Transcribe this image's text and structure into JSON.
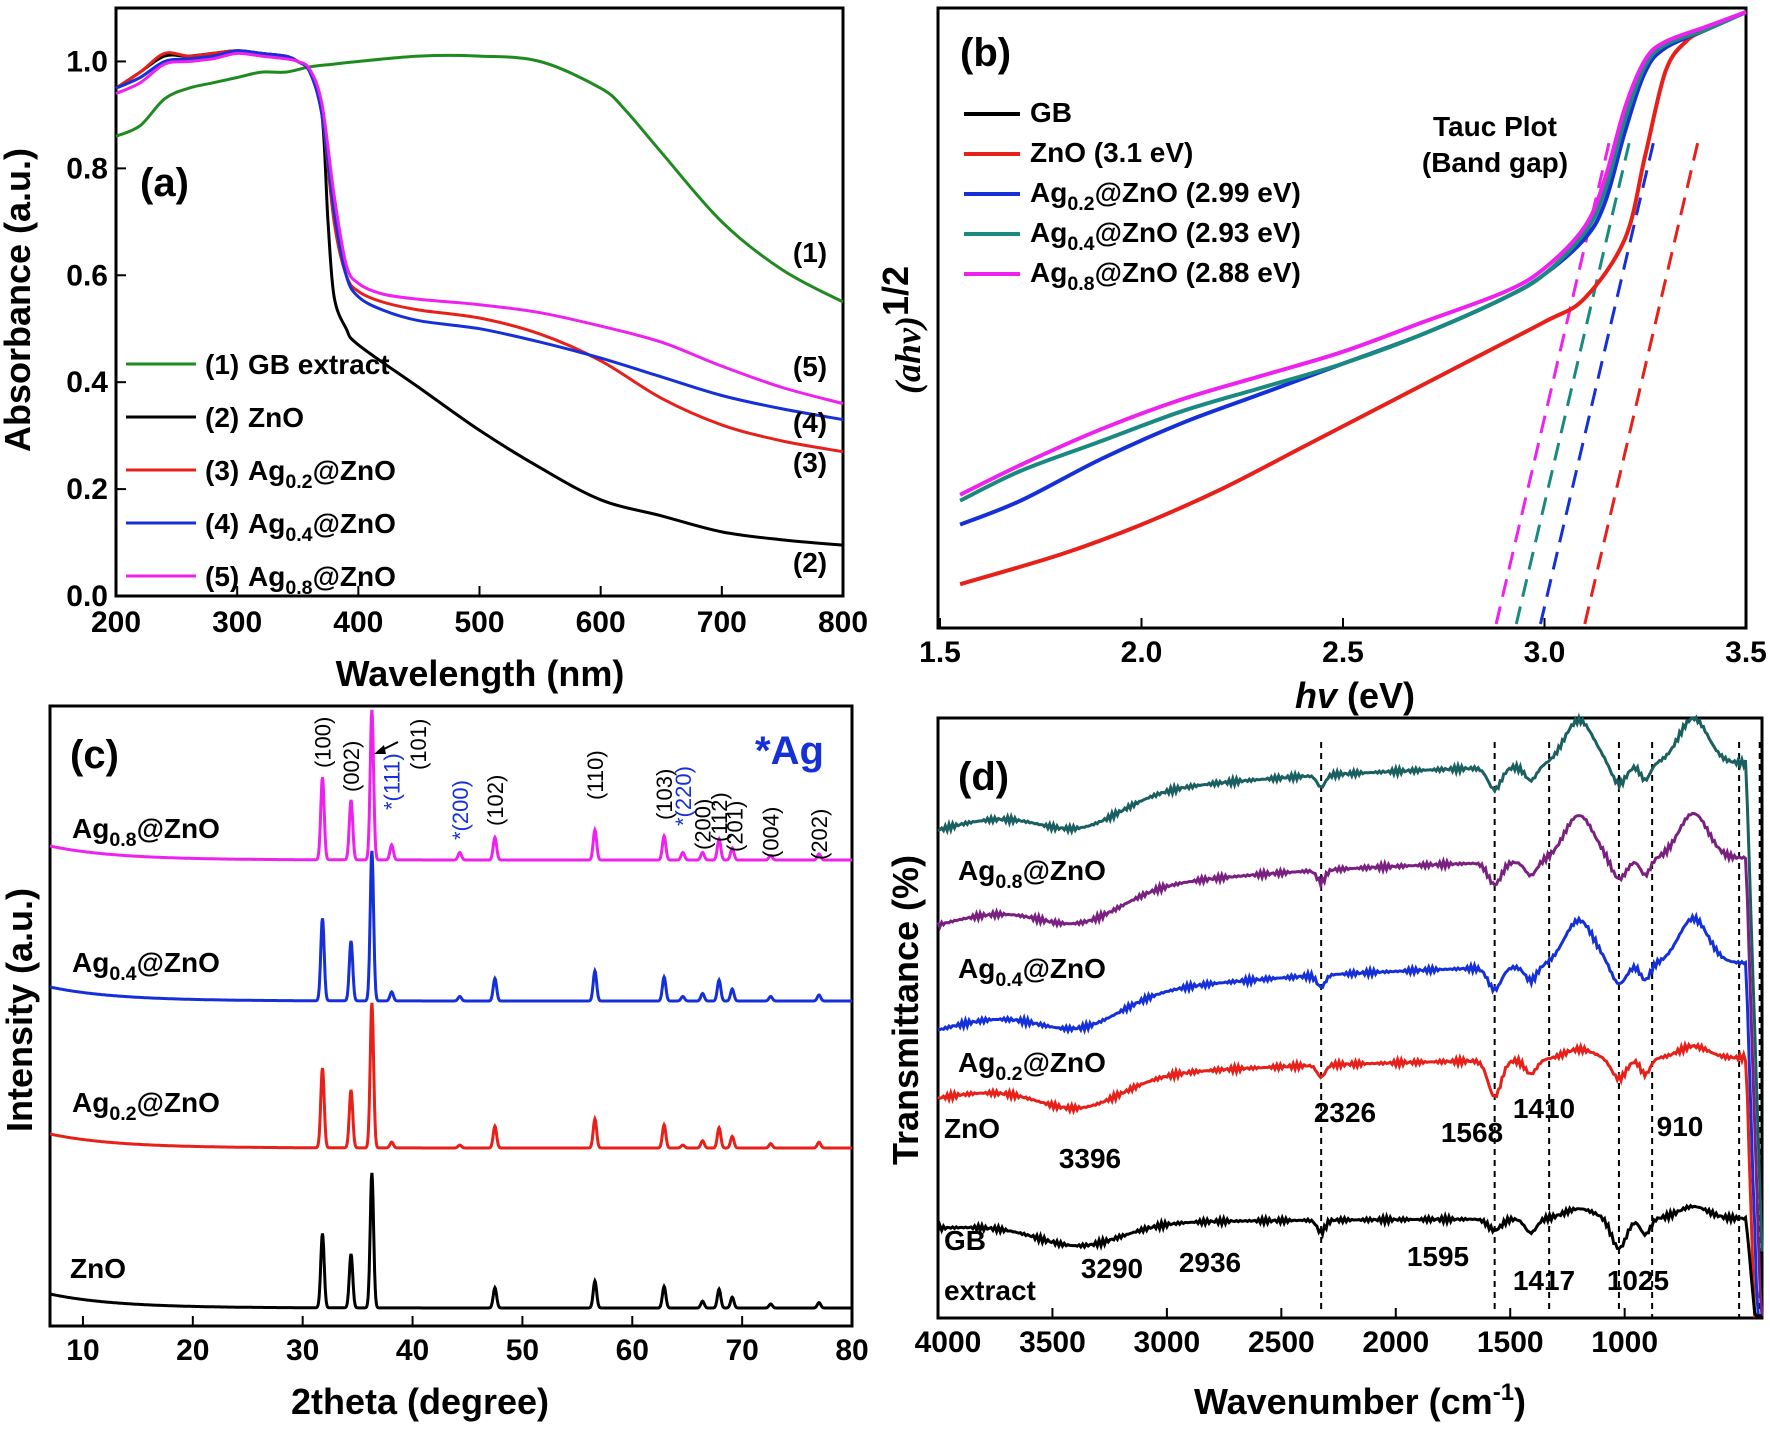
{
  "chart_data": [
    {
      "id": "a",
      "type": "line",
      "panel_label": "(a)",
      "xlabel": "Wavelength (nm)",
      "ylabel": "Absorbance (a.u.)",
      "xlim": [
        200,
        800
      ],
      "ylim": [
        0.0,
        1.1
      ],
      "xticks": [
        200,
        300,
        400,
        500,
        600,
        700,
        800
      ],
      "yticks": [
        0.0,
        0.2,
        0.4,
        0.6,
        0.8,
        1.0
      ],
      "xtick_labels": [
        "200",
        "300",
        "400",
        "500",
        "600",
        "700",
        "800"
      ],
      "ytick_labels": [
        "0.0",
        "0.2",
        "0.4",
        "0.6",
        "0.8",
        "1.0"
      ],
      "legend": [
        {
          "num": "(1)",
          "name": "GB extract",
          "base": "GB extract",
          "sub": "",
          "tail": "",
          "color": "#1f8a1f"
        },
        {
          "num": "(2)",
          "name": "ZnO",
          "base": "ZnO",
          "sub": "",
          "tail": "",
          "color": "#000000"
        },
        {
          "num": "(3)",
          "name": "Ag0.2@ZnO",
          "base": "Ag",
          "sub": "0.2",
          "tail": "@ZnO",
          "color": "#e8201a"
        },
        {
          "num": "(4)",
          "name": "Ag0.4@ZnO",
          "base": "Ag",
          "sub": "0.4",
          "tail": "@ZnO",
          "color": "#1530d8"
        },
        {
          "num": "(5)",
          "name": "Ag0.8@ZnO",
          "base": "Ag",
          "sub": "0.8",
          "tail": "@ZnO",
          "color": "#ee22ee"
        }
      ],
      "end_labels": [
        "(1)",
        "(2)",
        "(3)",
        "(4)",
        "(5)"
      ],
      "series": [
        {
          "name": "GB extract",
          "color": "#1f8a1f",
          "x": [
            200,
            220,
            240,
            260,
            280,
            300,
            320,
            340,
            360,
            380,
            400,
            450,
            500,
            550,
            600,
            620,
            650,
            700,
            750,
            800
          ],
          "y": [
            0.86,
            0.88,
            0.93,
            0.95,
            0.96,
            0.97,
            0.98,
            0.98,
            0.99,
            0.995,
            1.0,
            1.01,
            1.01,
            1.0,
            0.95,
            0.91,
            0.83,
            0.7,
            0.61,
            0.55
          ]
        },
        {
          "name": "ZnO",
          "color": "#000000",
          "x": [
            200,
            220,
            240,
            260,
            280,
            300,
            320,
            340,
            350,
            360,
            370,
            375,
            380,
            390,
            400,
            450,
            500,
            550,
            600,
            650,
            700,
            750,
            800
          ],
          "y": [
            0.95,
            0.98,
            1.01,
            1.01,
            1.015,
            1.02,
            1.015,
            1.01,
            1.0,
            0.98,
            0.9,
            0.7,
            0.56,
            0.5,
            0.47,
            0.39,
            0.31,
            0.24,
            0.18,
            0.15,
            0.12,
            0.105,
            0.095
          ]
        },
        {
          "name": "Ag0.2@ZnO",
          "color": "#e8201a",
          "x": [
            200,
            220,
            240,
            260,
            280,
            300,
            320,
            340,
            350,
            360,
            370,
            380,
            390,
            400,
            420,
            450,
            500,
            550,
            600,
            650,
            700,
            750,
            800
          ],
          "y": [
            0.95,
            0.98,
            1.015,
            1.01,
            1.015,
            1.02,
            1.015,
            1.01,
            1.0,
            0.98,
            0.9,
            0.7,
            0.6,
            0.57,
            0.55,
            0.535,
            0.52,
            0.49,
            0.44,
            0.37,
            0.32,
            0.29,
            0.27
          ]
        },
        {
          "name": "Ag0.4@ZnO",
          "color": "#1530d8",
          "x": [
            200,
            220,
            240,
            260,
            280,
            300,
            320,
            340,
            350,
            360,
            370,
            380,
            390,
            400,
            420,
            450,
            500,
            550,
            600,
            650,
            700,
            750,
            800
          ],
          "y": [
            0.95,
            0.97,
            1.0,
            1.005,
            1.01,
            1.02,
            1.015,
            1.01,
            1.0,
            0.98,
            0.9,
            0.72,
            0.6,
            0.56,
            0.535,
            0.515,
            0.5,
            0.475,
            0.445,
            0.41,
            0.375,
            0.35,
            0.33
          ]
        },
        {
          "name": "Ag0.8@ZnO",
          "color": "#ee22ee",
          "x": [
            200,
            220,
            240,
            260,
            280,
            300,
            320,
            340,
            350,
            360,
            370,
            380,
            390,
            400,
            420,
            450,
            500,
            550,
            600,
            650,
            700,
            750,
            800
          ],
          "y": [
            0.94,
            0.96,
            0.995,
            1.0,
            1.005,
            1.015,
            1.01,
            1.005,
            1.0,
            0.985,
            0.92,
            0.75,
            0.62,
            0.585,
            0.565,
            0.555,
            0.545,
            0.53,
            0.505,
            0.475,
            0.43,
            0.39,
            0.36
          ]
        }
      ]
    },
    {
      "id": "b",
      "type": "line",
      "panel_label": "(b)",
      "title": "Tauc Plot",
      "subtitle": "(Band gap)",
      "xlabel": "hv (eV)",
      "ylabel": "(ahv)1/2",
      "xlim": [
        1.5,
        3.5
      ],
      "ylim": [
        0,
        1
      ],
      "xticks": [
        1.5,
        2.0,
        2.5,
        3.0,
        3.5
      ],
      "xtick_labels": [
        "1.5",
        "2.0",
        "2.5",
        "3.0",
        "3.5"
      ],
      "legend": [
        {
          "name": "GB",
          "base": "GB",
          "sub": "",
          "tail": "",
          "color": "#000000"
        },
        {
          "name": "ZnO (3.1 eV)",
          "base": "ZnO",
          "sub": "",
          "tail": " (3.1 eV)",
          "color": "#e8201a"
        },
        {
          "name": "Ag0.2@ZnO (2.99 eV)",
          "base": "Ag",
          "sub": "0.2",
          "tail": "@ZnO (2.99 eV)",
          "color": "#1530d8"
        },
        {
          "name": "Ag0.4@ZnO (2.93 eV)",
          "base": "Ag",
          "sub": "0.4",
          "tail": "@ZnO (2.93 eV)",
          "color": "#1a8a80"
        },
        {
          "name": "Ag0.8@ZnO (2.88 eV)",
          "base": "Ag",
          "sub": "0.8",
          "tail": "@ZnO (2.88 eV)",
          "color": "#ee22ee"
        }
      ],
      "band_gaps_eV": [
        3.1,
        2.99,
        2.93,
        2.88
      ],
      "series": [
        {
          "name": "ZnO",
          "color": "#e8201a",
          "x": [
            1.55,
            1.8,
            2.0,
            2.2,
            2.4,
            2.6,
            2.8,
            3.0,
            3.1,
            3.2,
            3.25,
            3.3,
            3.35,
            3.4,
            3.5
          ],
          "y": [
            0.04,
            0.09,
            0.14,
            0.2,
            0.27,
            0.34,
            0.41,
            0.48,
            0.52,
            0.62,
            0.76,
            0.9,
            0.95,
            0.97,
            1.0
          ]
        },
        {
          "name": "Ag0.2@ZnO",
          "color": "#1530d8",
          "x": [
            1.55,
            1.7,
            1.9,
            2.1,
            2.3,
            2.5,
            2.7,
            2.9,
            3.0,
            3.1,
            3.15,
            3.2,
            3.25,
            3.3,
            3.4,
            3.5
          ],
          "y": [
            0.14,
            0.18,
            0.25,
            0.31,
            0.36,
            0.41,
            0.46,
            0.52,
            0.56,
            0.62,
            0.68,
            0.8,
            0.9,
            0.94,
            0.97,
            1.0
          ]
        },
        {
          "name": "Ag0.4@ZnO",
          "color": "#1a8a80",
          "x": [
            1.55,
            1.7,
            1.9,
            2.1,
            2.3,
            2.5,
            2.7,
            2.9,
            3.0,
            3.1,
            3.15,
            3.2,
            3.25,
            3.3,
            3.4,
            3.5
          ],
          "y": [
            0.18,
            0.23,
            0.28,
            0.33,
            0.37,
            0.41,
            0.46,
            0.52,
            0.56,
            0.63,
            0.7,
            0.82,
            0.91,
            0.945,
            0.97,
            1.0
          ]
        },
        {
          "name": "Ag0.8@ZnO",
          "color": "#ee22ee",
          "x": [
            1.55,
            1.7,
            1.9,
            2.1,
            2.3,
            2.5,
            2.7,
            2.9,
            3.0,
            3.1,
            3.15,
            3.2,
            3.25,
            3.3,
            3.4,
            3.5
          ],
          "y": [
            0.19,
            0.24,
            0.3,
            0.35,
            0.39,
            0.43,
            0.48,
            0.53,
            0.57,
            0.64,
            0.72,
            0.84,
            0.92,
            0.95,
            0.975,
            1.0
          ]
        }
      ]
    },
    {
      "id": "c",
      "type": "line",
      "panel_label": "(c)",
      "xlabel": "2theta (degree)",
      "ylabel": "Intensity (a.u.)",
      "xlim": [
        7,
        80
      ],
      "xticks": [
        10,
        20,
        30,
        40,
        50,
        60,
        70,
        80
      ],
      "xtick_labels": [
        "10",
        "20",
        "30",
        "40",
        "50",
        "60",
        "70",
        "80"
      ],
      "ag_marker": "*Ag",
      "samples": [
        {
          "name": "Ag0.8@ZnO",
          "base": "Ag",
          "sub": "0.8",
          "tail": "@ZnO",
          "color": "#ee22ee"
        },
        {
          "name": "Ag0.4@ZnO",
          "base": "Ag",
          "sub": "0.4",
          "tail": "@ZnO",
          "color": "#1530d8"
        },
        {
          "name": "Ag0.2@ZnO",
          "base": "Ag",
          "sub": "0.2",
          "tail": "@ZnO",
          "color": "#e8201a"
        },
        {
          "name": "ZnO",
          "base": "ZnO",
          "sub": "",
          "tail": "",
          "color": "#000000"
        }
      ],
      "peaks_2theta": [
        31.8,
        34.4,
        36.3,
        38.1,
        44.3,
        47.5,
        56.6,
        62.9,
        64.6,
        66.4,
        67.9,
        69.1,
        72.6,
        77.0
      ],
      "peak_heights": [
        0.55,
        0.4,
        1.0,
        0.1,
        0.05,
        0.15,
        0.2,
        0.16,
        0.05,
        0.05,
        0.14,
        0.08,
        0.03,
        0.04
      ],
      "hkl_labels": [
        {
          "text": "(100)",
          "angle": 31.8,
          "color": "#000000"
        },
        {
          "text": "(002)",
          "angle": 34.4,
          "color": "#000000"
        },
        {
          "text": "*(111)",
          "angle": 38.1,
          "color": "#1530d8"
        },
        {
          "text": "(101)",
          "angle": 40.5,
          "color": "#000000"
        },
        {
          "text": "*(200)",
          "angle": 44.3,
          "color": "#1530d8"
        },
        {
          "text": "(102)",
          "angle": 47.5,
          "color": "#000000"
        },
        {
          "text": "(110)",
          "angle": 56.6,
          "color": "#000000"
        },
        {
          "text": "(103)",
          "angle": 62.9,
          "color": "#000000"
        },
        {
          "text": "*(220)",
          "angle": 64.6,
          "color": "#1530d8"
        },
        {
          "text": "(200)",
          "angle": 66.4,
          "color": "#000000"
        },
        {
          "text": "(112)",
          "angle": 67.9,
          "color": "#000000"
        },
        {
          "text": "(201)",
          "angle": 69.3,
          "color": "#000000"
        },
        {
          "text": "(004)",
          "angle": 72.6,
          "color": "#000000"
        },
        {
          "text": "(202)",
          "angle": 77.0,
          "color": "#000000"
        }
      ]
    },
    {
      "id": "d",
      "type": "line",
      "panel_label": "(d)",
      "xlabel": "Wavenumber (cm",
      "xlabel_sup": "-1",
      "xlabel_tail": ")",
      "ylabel": "Transmittance (%)",
      "xlim": [
        4000,
        400
      ],
      "xticks": [
        4000,
        3500,
        3000,
        2500,
        2000,
        1500,
        1000
      ],
      "xtick_labels": [
        "4000",
        "3500",
        "3000",
        "2500",
        "2000",
        "1500",
        "1000"
      ],
      "dashed_lines_cm": [
        2326,
        1568,
        1330,
        1025,
        880,
        500,
        410
      ],
      "samples": [
        {
          "name": "top",
          "color": "#1a6060"
        },
        {
          "name": "Ag0.8@ZnO",
          "base": "Ag",
          "sub": "0.8",
          "tail": "@ZnO",
          "color": "#7a2080"
        },
        {
          "name": "Ag0.4@ZnO",
          "base": "Ag",
          "sub": "0.4",
          "tail": "@ZnO",
          "color": "#1530d8"
        },
        {
          "name": "Ag0.2@ZnO",
          "base": "Ag",
          "sub": "0.2",
          "tail": "@ZnO",
          "color": "#e8201a"
        },
        {
          "name": "GB extract",
          "color": "#000000"
        }
      ],
      "labels": {
        "zno": "ZnO",
        "gb1": "GB",
        "gb2": "extract"
      },
      "peak_labels": [
        "3396",
        "2326",
        "1568",
        "1410",
        "910",
        "3290",
        "2936",
        "1595",
        "1417",
        "1025"
      ]
    }
  ]
}
